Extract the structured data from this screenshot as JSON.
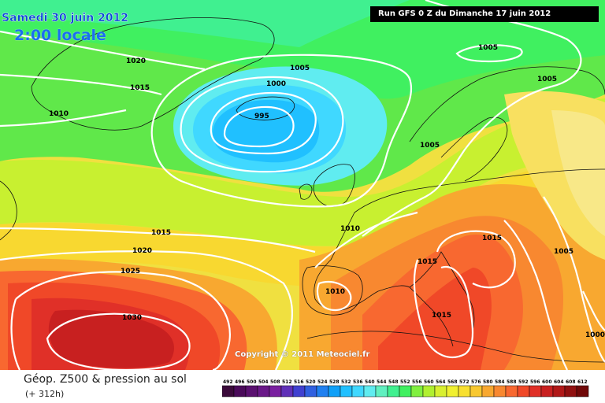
{
  "header": {
    "date": "Samedi 30 juin 2012",
    "time": "2:00 locale",
    "run": "Run GFS 0 Z du Dimanche 17 juin 2012"
  },
  "copyright": "Copyright © 2011 Meteociel.fr",
  "legend": {
    "title": "Géop. Z500 & pression au sol",
    "subtitle": "(+ 312h)",
    "values": [
      "492",
      "496",
      "500",
      "504",
      "508",
      "512",
      "516",
      "520",
      "524",
      "528",
      "532",
      "536",
      "540",
      "544",
      "548",
      "552",
      "556",
      "560",
      "564",
      "568",
      "572",
      "576",
      "580",
      "584",
      "588",
      "592",
      "596",
      "600",
      "604",
      "608",
      "612"
    ],
    "colors": [
      "#3a0a3a",
      "#4a0a5a",
      "#5a1070",
      "#6a1888",
      "#7a20a0",
      "#6030b8",
      "#4040d0",
      "#3060e0",
      "#2080f0",
      "#10a0f8",
      "#20c0ff",
      "#40d8ff",
      "#60ecf0",
      "#60f0c0",
      "#40f090",
      "#40f060",
      "#80f040",
      "#b0f030",
      "#d8f030",
      "#f0f030",
      "#f8e030",
      "#f8c830",
      "#f8a830",
      "#f88830",
      "#f86830",
      "#f04828",
      "#e03028",
      "#c82020",
      "#b01818",
      "#901010",
      "#700808"
    ]
  },
  "isobars": [
    {
      "label": "1020"
    },
    {
      "label": "1015"
    },
    {
      "label": "1010"
    },
    {
      "label": "1005"
    },
    {
      "label": "1000"
    },
    {
      "label": "995"
    },
    {
      "label": "1005"
    },
    {
      "label": "1005"
    },
    {
      "label": "1005"
    },
    {
      "label": "1015"
    },
    {
      "label": "1020"
    },
    {
      "label": "1025"
    },
    {
      "label": "1030"
    },
    {
      "label": "1010"
    },
    {
      "label": "1015"
    },
    {
      "label": "1015"
    },
    {
      "label": "1010"
    },
    {
      "label": "1015"
    },
    {
      "label": "1005"
    },
    {
      "label": "1000"
    }
  ]
}
